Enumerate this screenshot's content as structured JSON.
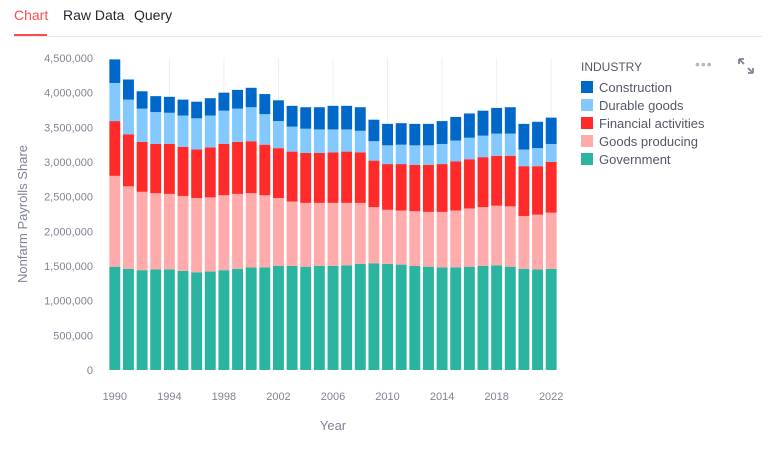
{
  "tabs": [
    {
      "label": "Chart",
      "active": true
    },
    {
      "label": "Raw Data",
      "active": false
    },
    {
      "label": "Query",
      "active": false
    }
  ],
  "icons": {
    "menu": "more-horizontal-icon",
    "expand": "fullscreen-expand-icon"
  },
  "chart_data": {
    "type": "bar",
    "stacked": true,
    "xlabel": "Year",
    "ylabel": "Nonfarm Payrolls Share",
    "ylim": [
      0,
      4500000
    ],
    "yticks": [
      0,
      500000,
      1000000,
      1500000,
      2000000,
      2500000,
      3000000,
      3500000,
      4000000,
      4500000
    ],
    "ytick_labels": [
      "0",
      "500,000",
      "1,000,000",
      "1,500,000",
      "2,000,000",
      "2,500,000",
      "3,000,000",
      "3,500,000",
      "4,000,000",
      "4,500,000"
    ],
    "xtick_labels": [
      "1990",
      "1994",
      "1998",
      "2002",
      "2006",
      "2010",
      "2014",
      "2018",
      "2022"
    ],
    "categories": [
      1990,
      1991,
      1992,
      1993,
      1994,
      1995,
      1996,
      1997,
      1998,
      1999,
      2000,
      2001,
      2002,
      2003,
      2004,
      2005,
      2006,
      2007,
      2008,
      2009,
      2010,
      2011,
      2012,
      2013,
      2014,
      2015,
      2016,
      2017,
      2018,
      2019,
      2020,
      2021,
      2022
    ],
    "legend_title": "INDUSTRY",
    "legend_position": "right",
    "grid": "vertical",
    "series": [
      {
        "name": "Government",
        "color": "#2bb5a0",
        "values": [
          1490000,
          1460000,
          1440000,
          1450000,
          1450000,
          1430000,
          1410000,
          1420000,
          1440000,
          1460000,
          1480000,
          1480000,
          1500000,
          1500000,
          1490000,
          1500000,
          1500000,
          1510000,
          1530000,
          1540000,
          1530000,
          1520000,
          1500000,
          1490000,
          1480000,
          1480000,
          1490000,
          1500000,
          1510000,
          1490000,
          1460000,
          1450000,
          1460000
        ]
      },
      {
        "name": "Goods producing",
        "color": "#ffabab",
        "values": [
          1310000,
          1190000,
          1130000,
          1100000,
          1090000,
          1080000,
          1070000,
          1070000,
          1080000,
          1080000,
          1070000,
          1040000,
          980000,
          930000,
          920000,
          910000,
          910000,
          900000,
          880000,
          810000,
          780000,
          780000,
          790000,
          790000,
          800000,
          820000,
          840000,
          850000,
          860000,
          870000,
          760000,
          790000,
          810000
        ]
      },
      {
        "name": "Financial activities",
        "color": "#ff2b2b",
        "values": [
          790000,
          750000,
          720000,
          710000,
          720000,
          710000,
          700000,
          720000,
          740000,
          750000,
          750000,
          730000,
          720000,
          720000,
          720000,
          720000,
          730000,
          740000,
          730000,
          670000,
          660000,
          670000,
          670000,
          680000,
          690000,
          710000,
          710000,
          720000,
          720000,
          730000,
          720000,
          700000,
          730000
        ]
      },
      {
        "name": "Durable goods",
        "color": "#83c9ff",
        "values": [
          550000,
          500000,
          480000,
          460000,
          450000,
          450000,
          450000,
          460000,
          480000,
          480000,
          490000,
          440000,
          390000,
          360000,
          350000,
          340000,
          330000,
          320000,
          310000,
          280000,
          270000,
          280000,
          280000,
          280000,
          290000,
          300000,
          310000,
          310000,
          320000,
          320000,
          240000,
          260000,
          260000
        ]
      },
      {
        "name": "Construction",
        "color": "#0068c9",
        "values": [
          340000,
          290000,
          250000,
          230000,
          230000,
          230000,
          240000,
          250000,
          260000,
          270000,
          280000,
          290000,
          300000,
          300000,
          310000,
          320000,
          340000,
          340000,
          340000,
          310000,
          310000,
          310000,
          310000,
          310000,
          330000,
          340000,
          350000,
          360000,
          370000,
          380000,
          370000,
          380000,
          380000
        ]
      }
    ]
  }
}
